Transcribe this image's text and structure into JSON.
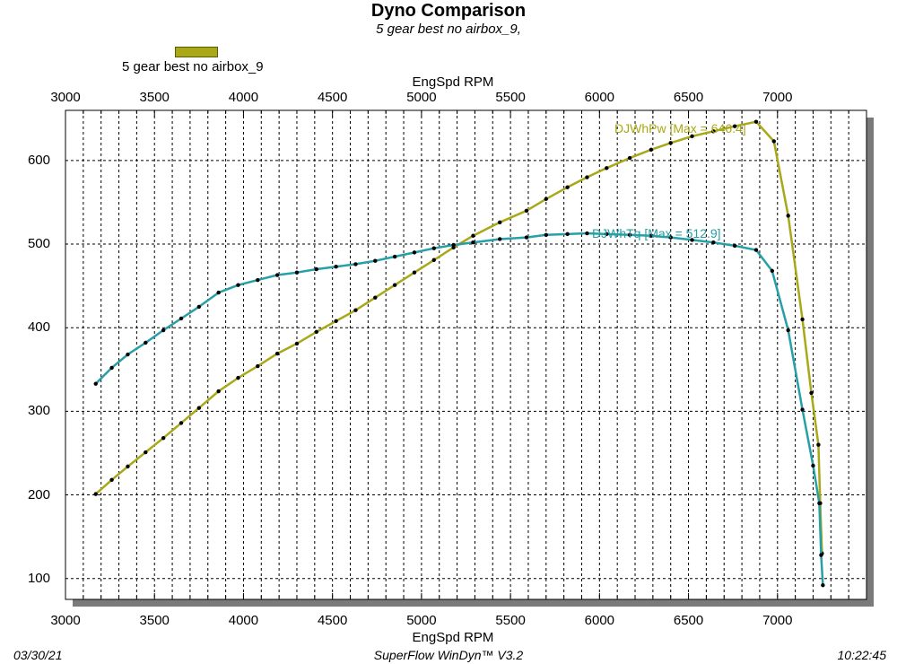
{
  "chart_data": {
    "type": "line",
    "title": "Dyno Comparison",
    "subtitle": "5 gear best no airbox_9,",
    "legend": {
      "label": "5 gear best no airbox_9",
      "color": "#a8a818",
      "placement": "top-left"
    },
    "xlabel": "EngSpd  RPM",
    "xlim": [
      3000,
      7500
    ],
    "ylim": [
      75,
      660
    ],
    "x_ticks": [
      "3000",
      "3500",
      "4000",
      "4500",
      "5000",
      "5500",
      "6000",
      "6500",
      "7000"
    ],
    "y_ticks": [
      "100",
      "200",
      "300",
      "400",
      "500",
      "600"
    ],
    "grid": true,
    "series": [
      {
        "name": "DJWhPw",
        "annotation": "DJWhPw [Max = 646.4]",
        "color": "#a8a818",
        "points": [
          [
            3170,
            201
          ],
          [
            3260,
            218
          ],
          [
            3350,
            234
          ],
          [
            3450,
            251
          ],
          [
            3550,
            268
          ],
          [
            3650,
            286
          ],
          [
            3750,
            304
          ],
          [
            3860,
            324
          ],
          [
            3970,
            340
          ],
          [
            4080,
            354
          ],
          [
            4190,
            369
          ],
          [
            4300,
            381
          ],
          [
            4410,
            395
          ],
          [
            4520,
            408
          ],
          [
            4630,
            421
          ],
          [
            4740,
            436
          ],
          [
            4850,
            451
          ],
          [
            4960,
            466
          ],
          [
            5070,
            481
          ],
          [
            5180,
            496
          ],
          [
            5290,
            510
          ],
          [
            5440,
            526
          ],
          [
            5590,
            540
          ],
          [
            5700,
            554
          ],
          [
            5820,
            568
          ],
          [
            5930,
            580
          ],
          [
            6040,
            591
          ],
          [
            6170,
            603
          ],
          [
            6290,
            613
          ],
          [
            6400,
            621
          ],
          [
            6520,
            629
          ],
          [
            6640,
            635
          ],
          [
            6760,
            641
          ],
          [
            6880,
            646.4
          ],
          [
            6980,
            623
          ],
          [
            7060,
            534
          ],
          [
            7140,
            410
          ],
          [
            7190,
            322
          ],
          [
            7230,
            260
          ],
          [
            7240,
            190
          ],
          [
            7250,
            130
          ]
        ]
      },
      {
        "name": "DJWhTq",
        "annotation": "DJWhTq [Max = 512.9]",
        "color": "#26a0a6",
        "points": [
          [
            3170,
            333
          ],
          [
            3260,
            352
          ],
          [
            3350,
            368
          ],
          [
            3450,
            382
          ],
          [
            3550,
            397
          ],
          [
            3650,
            411
          ],
          [
            3750,
            425
          ],
          [
            3860,
            442
          ],
          [
            3970,
            451
          ],
          [
            4080,
            457
          ],
          [
            4190,
            463
          ],
          [
            4300,
            466
          ],
          [
            4410,
            470
          ],
          [
            4520,
            473
          ],
          [
            4630,
            476
          ],
          [
            4740,
            480
          ],
          [
            4850,
            485
          ],
          [
            4960,
            490
          ],
          [
            5070,
            495
          ],
          [
            5180,
            499
          ],
          [
            5290,
            502
          ],
          [
            5440,
            506
          ],
          [
            5590,
            508
          ],
          [
            5700,
            511
          ],
          [
            5820,
            512
          ],
          [
            5930,
            512.9
          ],
          [
            6040,
            512
          ],
          [
            6170,
            511
          ],
          [
            6290,
            510
          ],
          [
            6400,
            508
          ],
          [
            6520,
            505
          ],
          [
            6640,
            502
          ],
          [
            6760,
            498
          ],
          [
            6880,
            493
          ],
          [
            6970,
            468
          ],
          [
            7060,
            397
          ],
          [
            7140,
            302
          ],
          [
            7200,
            235
          ],
          [
            7235,
            190
          ],
          [
            7245,
            128
          ],
          [
            7255,
            92
          ]
        ]
      }
    ]
  },
  "footer": {
    "date": "03/30/21",
    "software": "SuperFlow  WinDyn™ V3.2",
    "time": "10:22:45"
  }
}
